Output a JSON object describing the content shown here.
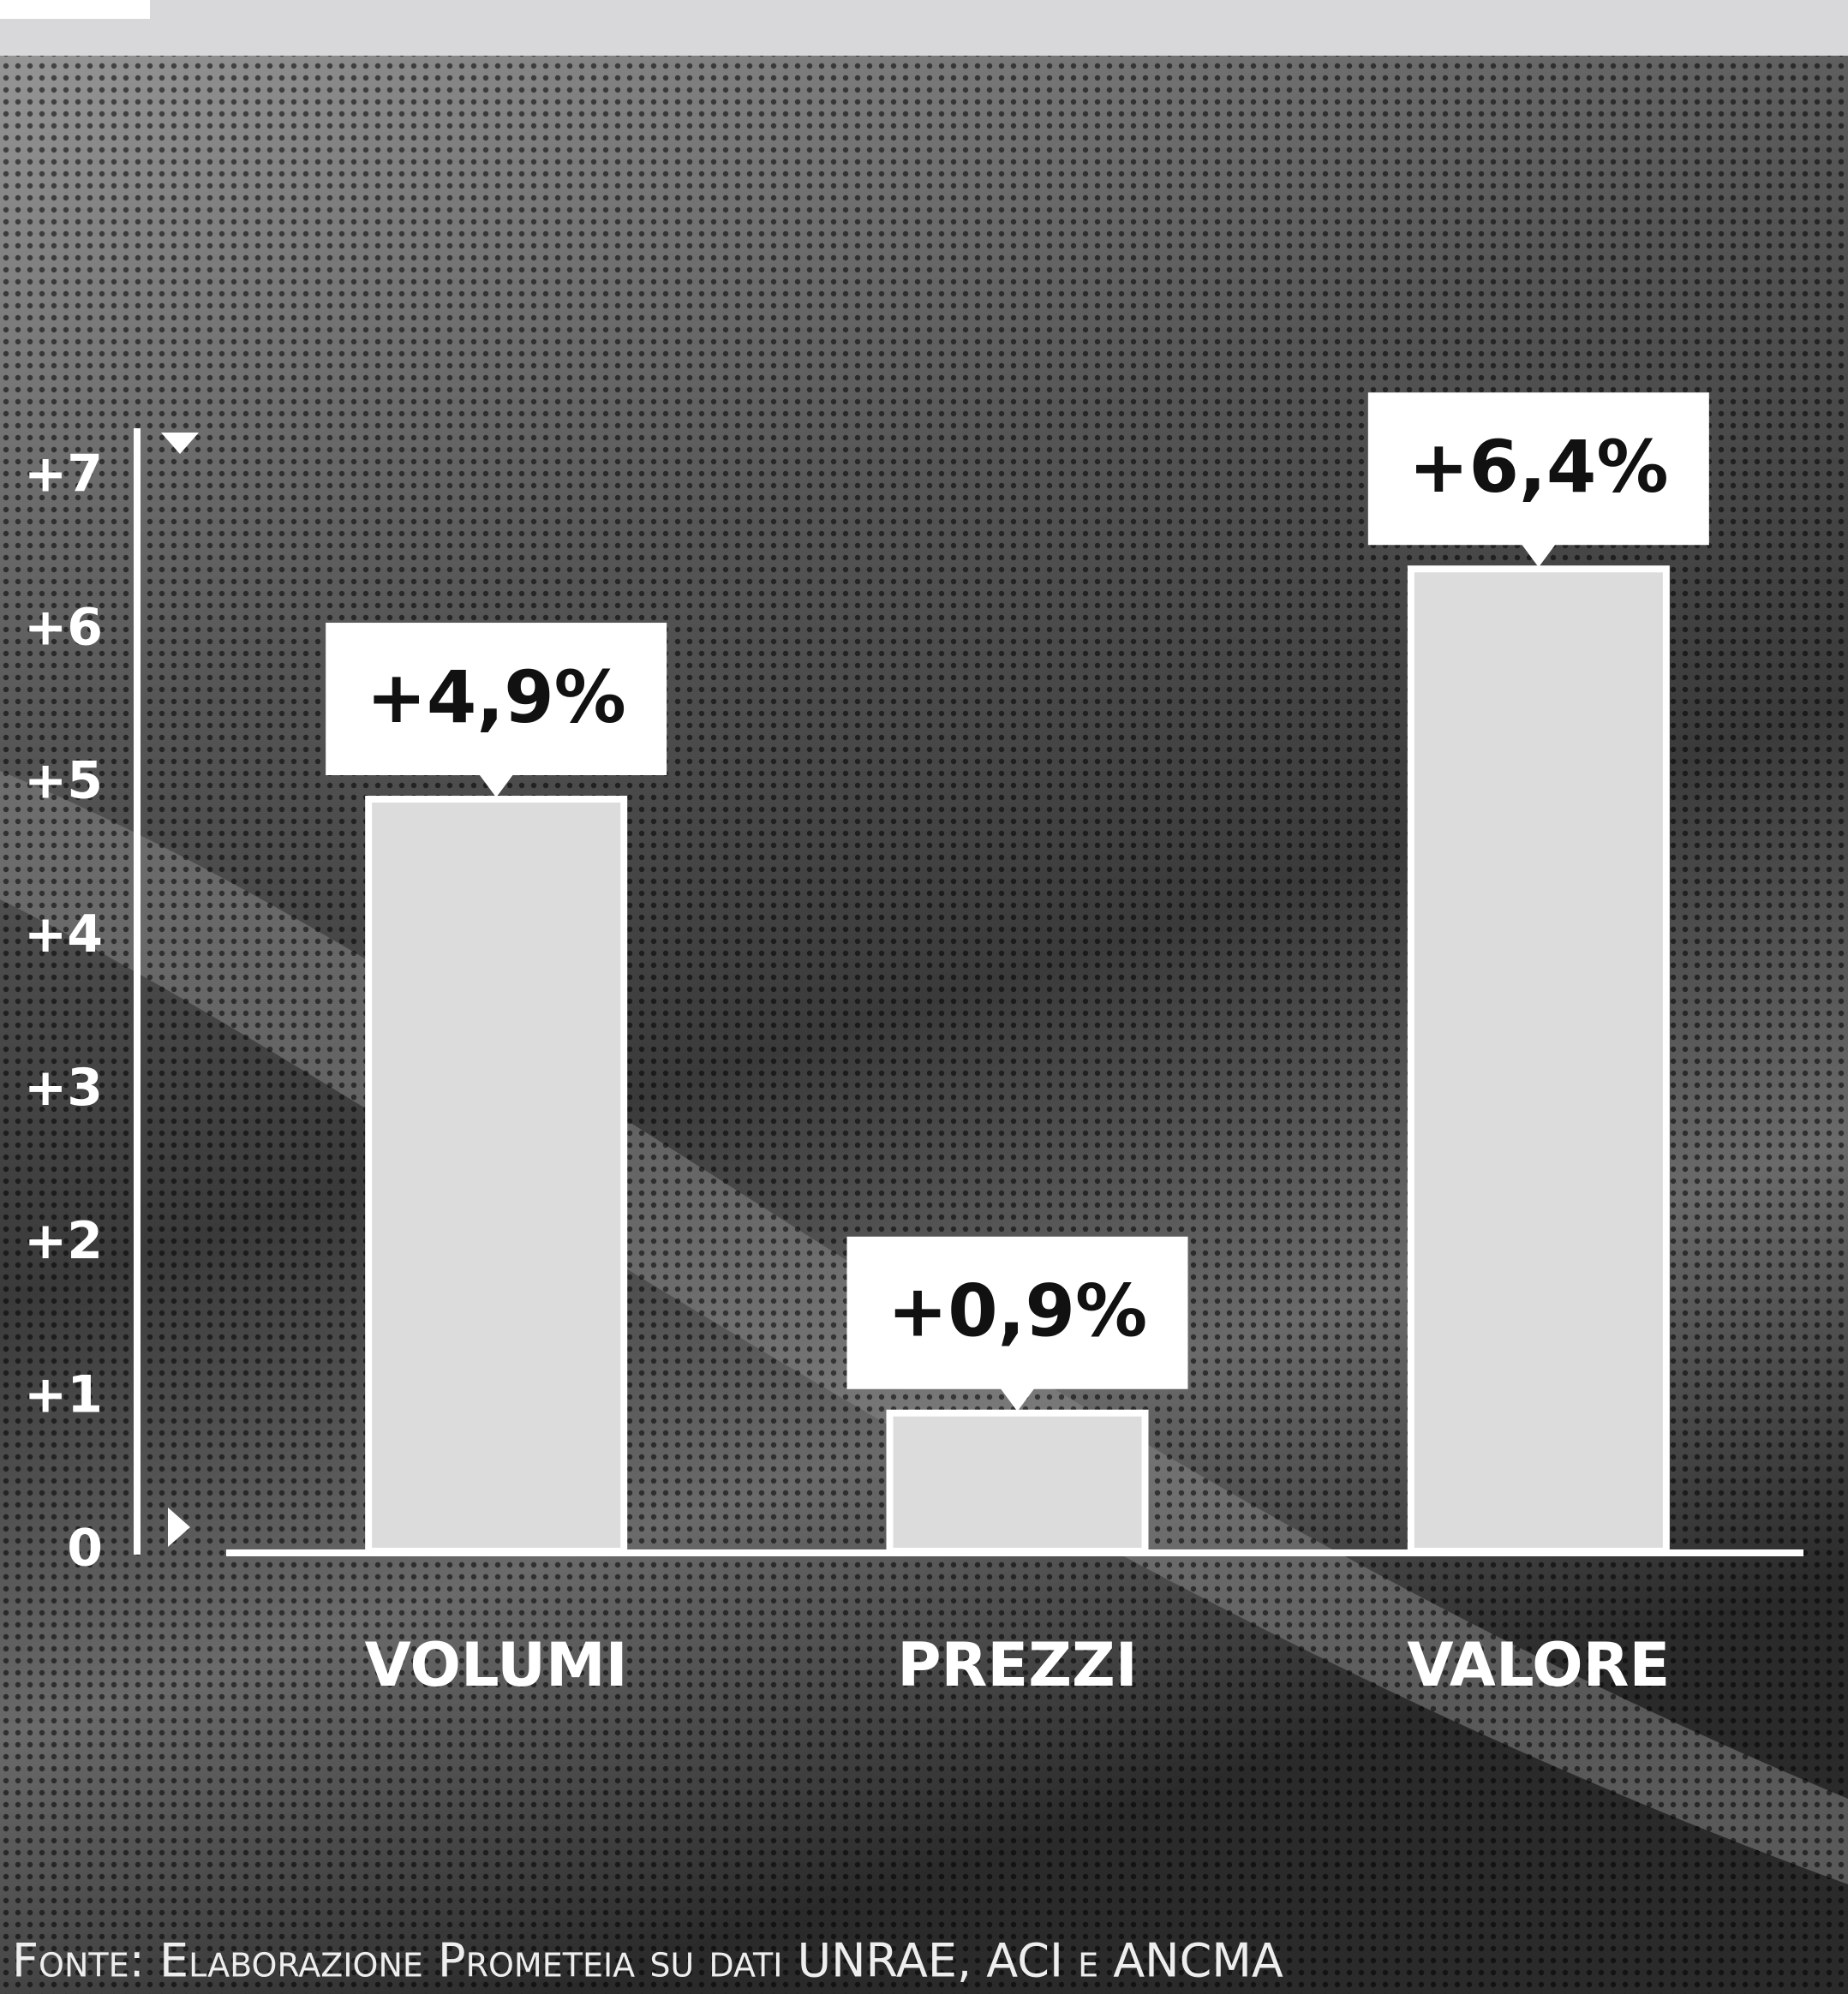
{
  "chart_data": {
    "type": "bar",
    "categories": [
      "VOLUMI",
      "PREZZI",
      "VALORE"
    ],
    "values": [
      4.9,
      0.9,
      6.4
    ],
    "value_labels": [
      "+4,9%",
      "+0,9%",
      "+6,4%"
    ],
    "color": "#dcdcdc",
    "ylim": [
      0,
      7.3
    ],
    "yticks": [
      0,
      {
        "value": 1,
        "label": "+1"
      },
      {
        "value": 2,
        "label": "+2"
      },
      {
        "value": 3,
        "label": "+3"
      },
      {
        "value": 4,
        "label": "+4"
      },
      {
        "value": 5,
        "label": "+5"
      },
      {
        "value": 6,
        "label": "+6"
      },
      {
        "value": 7,
        "label": "+7"
      }
    ],
    "grid": false,
    "source": "Fonte: Elaborazione Prometeia su dati UNRAE, ACI e ANCMA"
  }
}
